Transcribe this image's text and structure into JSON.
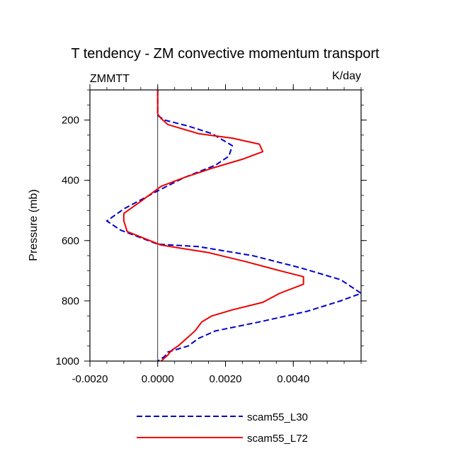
{
  "chart_data": {
    "type": "line",
    "title": "T tendency - ZM convective momentum transport",
    "left_label": "ZMMTT",
    "right_label": "K/day",
    "xlabel": "",
    "ylabel": "Pressure (mb)",
    "xlim": [
      -0.002,
      0.006
    ],
    "ylim": [
      100,
      1000
    ],
    "y_reversed": true,
    "xticks": [
      -0.002,
      0.0,
      0.002,
      0.004
    ],
    "xtick_labels": [
      "-0.0020",
      "0.0000",
      "0.0020",
      "0.0040"
    ],
    "yticks": [
      200,
      400,
      600,
      800,
      1000
    ],
    "ytick_labels": [
      "200",
      "400",
      "600",
      "800",
      "1000"
    ],
    "zero_line": 0.0,
    "grid": false,
    "legend_position": "bottom",
    "series": [
      {
        "name": "scam55_L30",
        "color": "#0000cc",
        "dash": "dashed",
        "points": [
          [
            0.0,
            100
          ],
          [
            0.0,
            150
          ],
          [
            0.0,
            185
          ],
          [
            0.0002,
            200
          ],
          [
            0.0009,
            220
          ],
          [
            0.0016,
            245
          ],
          [
            0.0022,
            285
          ],
          [
            0.0021,
            320
          ],
          [
            0.0017,
            350
          ],
          [
            0.0008,
            390
          ],
          [
            0.0,
            435
          ],
          [
            -0.001,
            495
          ],
          [
            -0.0015,
            535
          ],
          [
            -0.0011,
            565
          ],
          [
            0.0,
            612
          ],
          [
            0.0012,
            620
          ],
          [
            0.0028,
            650
          ],
          [
            0.0042,
            690
          ],
          [
            0.0054,
            730
          ],
          [
            0.006,
            775
          ],
          [
            0.0054,
            800
          ],
          [
            0.0044,
            835
          ],
          [
            0.003,
            870
          ],
          [
            0.0017,
            900
          ],
          [
            0.0012,
            925
          ],
          [
            0.0009,
            950
          ],
          [
            0.0003,
            970
          ],
          [
            0.0002,
            985
          ],
          [
            0.0,
            1000
          ]
        ]
      },
      {
        "name": "scam55_L72",
        "color": "#ee0000",
        "dash": "solid",
        "points": [
          [
            0.0,
            100
          ],
          [
            0.0,
            150
          ],
          [
            0.0,
            180
          ],
          [
            0.0001,
            195
          ],
          [
            0.0003,
            215
          ],
          [
            0.0012,
            245
          ],
          [
            0.0022,
            260
          ],
          [
            0.003,
            280
          ],
          [
            0.0031,
            305
          ],
          [
            0.0025,
            330
          ],
          [
            0.0016,
            360
          ],
          [
            0.0008,
            390
          ],
          [
            0.0001,
            420
          ],
          [
            -0.0005,
            470
          ],
          [
            -0.001,
            510
          ],
          [
            -0.001,
            535
          ],
          [
            -0.0009,
            570
          ],
          [
            0.0001,
            615
          ],
          [
            0.0015,
            640
          ],
          [
            0.0026,
            670
          ],
          [
            0.0036,
            700
          ],
          [
            0.0043,
            720
          ],
          [
            0.0043,
            745
          ],
          [
            0.0036,
            775
          ],
          [
            0.0031,
            805
          ],
          [
            0.0022,
            830
          ],
          [
            0.0016,
            850
          ],
          [
            0.0013,
            870
          ],
          [
            0.0011,
            900
          ],
          [
            0.0008,
            930
          ],
          [
            0.0006,
            950
          ],
          [
            0.0004,
            965
          ],
          [
            0.0003,
            980
          ],
          [
            0.0001,
            1000
          ]
        ]
      }
    ]
  }
}
